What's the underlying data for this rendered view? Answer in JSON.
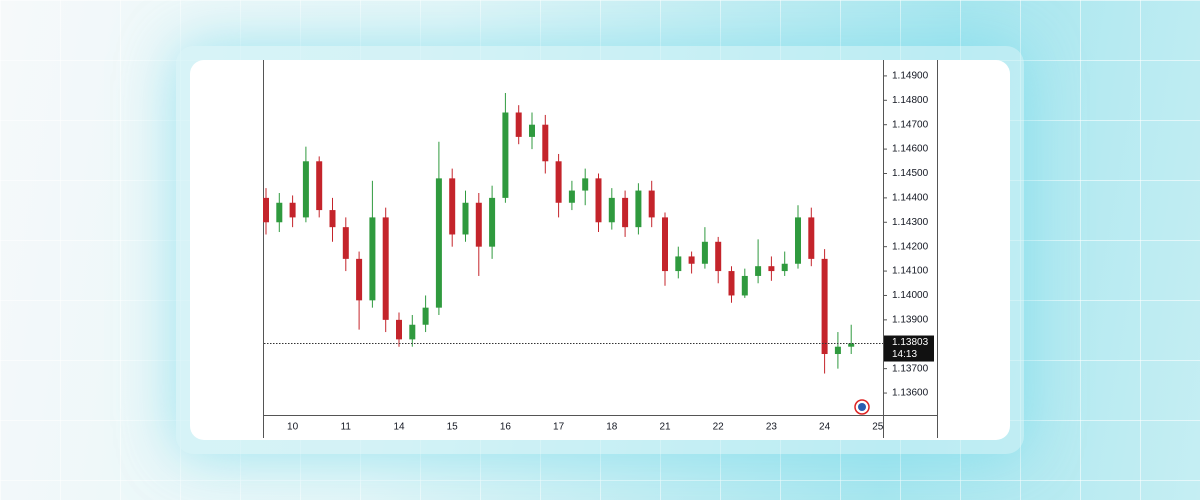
{
  "chart_data": {
    "type": "candlestick",
    "categories": [
      null,
      null,
      "10",
      null,
      null,
      null,
      "11",
      null,
      null,
      null,
      "14",
      null,
      null,
      null,
      "15",
      null,
      null,
      null,
      "16",
      null,
      null,
      null,
      "17",
      null,
      null,
      null,
      "18",
      null,
      null,
      null,
      "21",
      null,
      null,
      null,
      "22",
      null,
      null,
      null,
      "23",
      null,
      null,
      null,
      "24",
      null,
      null,
      null,
      "25"
    ],
    "open": [
      1.144,
      1.143,
      1.1438,
      1.1432,
      1.1455,
      1.1435,
      1.1428,
      1.1415,
      1.1398,
      1.1432,
      1.139,
      1.1382,
      1.1388,
      1.1395,
      1.1448,
      1.1425,
      1.1438,
      1.142,
      1.144,
      1.1475,
      1.1465,
      1.147,
      1.1455,
      1.1438,
      1.1443,
      1.1448,
      1.143,
      1.144,
      1.1428,
      1.1443,
      1.1432,
      1.141,
      1.1416,
      1.1413,
      1.1422,
      1.141,
      1.14,
      1.1408,
      1.1412,
      1.141,
      1.1413,
      1.1432,
      1.1415,
      1.1376,
      1.1379,
      null,
      null
    ],
    "high": [
      1.1444,
      1.1442,
      1.1441,
      1.1461,
      1.1457,
      1.144,
      1.1432,
      1.1418,
      1.1447,
      1.1436,
      1.1393,
      1.1392,
      1.14,
      1.1463,
      1.1452,
      1.1443,
      1.1442,
      1.1445,
      1.1483,
      1.1478,
      1.1475,
      1.1474,
      1.1458,
      1.1447,
      1.1452,
      1.145,
      1.1444,
      1.1443,
      1.1446,
      1.1447,
      1.1434,
      1.142,
      1.1418,
      1.1428,
      1.1424,
      1.1412,
      1.1411,
      1.1423,
      1.1416,
      1.1418,
      1.1437,
      1.1436,
      1.1419,
      1.1385,
      1.1388,
      null,
      null
    ],
    "low": [
      1.1425,
      1.1426,
      1.1428,
      1.143,
      1.1432,
      1.1422,
      1.141,
      1.1386,
      1.1395,
      1.1385,
      1.1379,
      1.1379,
      1.1385,
      1.1392,
      1.142,
      1.1422,
      1.1408,
      1.1415,
      1.1438,
      1.1462,
      1.146,
      1.145,
      1.1432,
      1.1435,
      1.1437,
      1.1426,
      1.1427,
      1.1424,
      1.1425,
      1.1428,
      1.1404,
      1.1407,
      1.1409,
      1.1411,
      1.1405,
      1.1397,
      1.1399,
      1.1405,
      1.1406,
      1.1408,
      1.1411,
      1.1412,
      1.1368,
      1.137,
      1.1376,
      null,
      null
    ],
    "close": [
      1.143,
      1.1438,
      1.1432,
      1.1455,
      1.1435,
      1.1428,
      1.1415,
      1.1398,
      1.1432,
      1.139,
      1.1382,
      1.1388,
      1.1395,
      1.1448,
      1.1425,
      1.1438,
      1.142,
      1.144,
      1.1475,
      1.1465,
      1.147,
      1.1455,
      1.1438,
      1.1443,
      1.1448,
      1.143,
      1.144,
      1.1428,
      1.1443,
      1.1432,
      1.141,
      1.1416,
      1.1413,
      1.1422,
      1.141,
      1.14,
      1.1408,
      1.1412,
      1.141,
      1.1413,
      1.1432,
      1.1415,
      1.1376,
      1.1379,
      1.13803,
      null,
      null
    ],
    "up_color": "#2f9a3e",
    "down_color": "#c4242b",
    "ylim": [
      1.1351,
      1.14957
    ],
    "yticks": [
      {
        "value": 1.149,
        "label": "1.14900"
      },
      {
        "value": 1.148,
        "label": "1.14800"
      },
      {
        "value": 1.147,
        "label": "1.14700"
      },
      {
        "value": 1.146,
        "label": "1.14600"
      },
      {
        "value": 1.145,
        "label": "1.14500"
      },
      {
        "value": 1.144,
        "label": "1.14400"
      },
      {
        "value": 1.143,
        "label": "1.14300"
      },
      {
        "value": 1.142,
        "label": "1.14200"
      },
      {
        "value": 1.141,
        "label": "1.14100"
      },
      {
        "value": 1.14,
        "label": "1.14000"
      },
      {
        "value": 1.139,
        "label": "1.13900"
      },
      {
        "value": 1.137,
        "label": "1.13700"
      },
      {
        "value": 1.136,
        "label": "1.13600"
      }
    ],
    "last_price": {
      "value": 1.13803,
      "label": "1.13803"
    },
    "countdown": "14:13",
    "grid": false
  }
}
